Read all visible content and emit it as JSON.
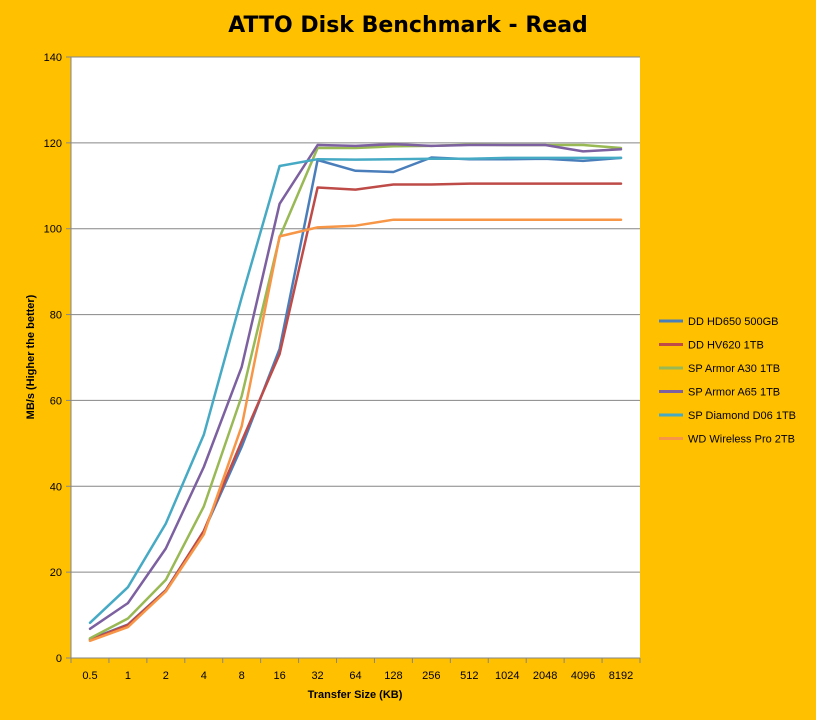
{
  "chart_data": {
    "type": "line",
    "title": "ATTO Disk Benchmark - Read",
    "xlabel": "Transfer Size (KB)",
    "ylabel": "MB/s (Higher the better)",
    "ylim": [
      0,
      140
    ],
    "yticks": [
      0,
      20,
      40,
      60,
      80,
      100,
      120,
      140
    ],
    "grid": true,
    "legend_position": "right",
    "categories": [
      "0.5",
      "1",
      "2",
      "4",
      "8",
      "16",
      "32",
      "64",
      "128",
      "256",
      "512",
      "1024",
      "2048",
      "4096",
      "8192"
    ],
    "series": [
      {
        "name": "DD HD650 500GB",
        "color": "#4A7EBB",
        "values": [
          4.4,
          7.8,
          15.8,
          29.5,
          49.2,
          72.0,
          116.0,
          113.5,
          113.2,
          116.6,
          116.2,
          116.2,
          116.3,
          115.8,
          116.5
        ]
      },
      {
        "name": "DD HV620 1TB",
        "color": "#BE4B48",
        "values": [
          4.2,
          7.7,
          15.7,
          29.6,
          50.5,
          70.8,
          109.6,
          109.1,
          110.3,
          110.3,
          110.5,
          110.5,
          110.5,
          110.5,
          110.5
        ]
      },
      {
        "name": "SP Armor A30 1TB",
        "color": "#98B954",
        "values": [
          4.6,
          9.2,
          18.2,
          35.3,
          61.0,
          98.0,
          118.8,
          118.8,
          119.2,
          119.3,
          119.6,
          119.5,
          119.5,
          119.5,
          118.8
        ]
      },
      {
        "name": "SP Armor A65 1TB",
        "color": "#7D60A0",
        "values": [
          6.8,
          12.8,
          25.5,
          44.5,
          67.8,
          105.8,
          119.5,
          119.3,
          119.7,
          119.3,
          119.5,
          119.5,
          119.5,
          118.0,
          118.5
        ]
      },
      {
        "name": "SP Diamond D06 1TB",
        "color": "#46AAC5",
        "values": [
          8.2,
          16.5,
          31.3,
          52.0,
          84.0,
          114.6,
          116.2,
          116.1,
          116.2,
          116.3,
          116.3,
          116.5,
          116.5,
          116.5,
          116.5
        ]
      },
      {
        "name": "WD Wireless Pro 2TB",
        "color": "#F79646",
        "values": [
          4.0,
          7.2,
          15.5,
          28.8,
          54.0,
          98.2,
          100.3,
          100.7,
          102.1,
          102.1,
          102.1,
          102.1,
          102.1,
          102.1,
          102.1
        ]
      }
    ]
  }
}
